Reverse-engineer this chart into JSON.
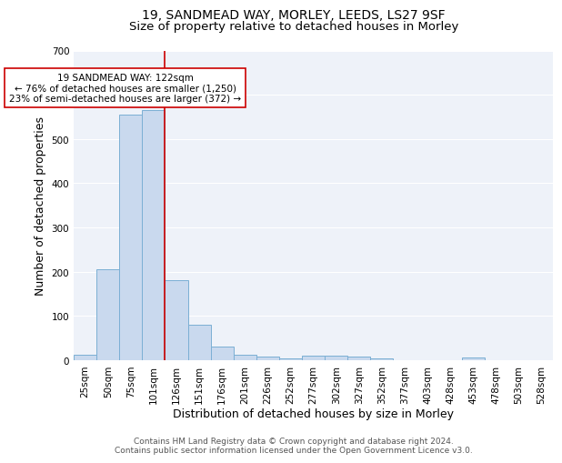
{
  "title_line1": "19, SANDMEAD WAY, MORLEY, LEEDS, LS27 9SF",
  "title_line2": "Size of property relative to detached houses in Morley",
  "xlabel": "Distribution of detached houses by size in Morley",
  "ylabel": "Number of detached properties",
  "footnote_line1": "Contains HM Land Registry data © Crown copyright and database right 2024.",
  "footnote_line2": "Contains public sector information licensed under the Open Government Licence v3.0.",
  "bar_labels": [
    "25sqm",
    "50sqm",
    "75sqm",
    "101sqm",
    "126sqm",
    "151sqm",
    "176sqm",
    "201sqm",
    "226sqm",
    "252sqm",
    "277sqm",
    "302sqm",
    "327sqm",
    "352sqm",
    "377sqm",
    "403sqm",
    "428sqm",
    "453sqm",
    "478sqm",
    "503sqm",
    "528sqm"
  ],
  "bar_values": [
    12,
    205,
    555,
    565,
    180,
    80,
    30,
    13,
    8,
    5,
    10,
    10,
    8,
    4,
    0,
    0,
    0,
    7,
    0,
    0,
    0
  ],
  "bar_color": "#c9d9ee",
  "bar_edge_color": "#7bafd4",
  "red_line_color": "#cc0000",
  "annotation_text": "19 SANDMEAD WAY: 122sqm\n← 76% of detached houses are smaller (1,250)\n23% of semi-detached houses are larger (372) →",
  "annotation_box_color": "white",
  "annotation_box_edge": "#cc0000",
  "ylim": [
    0,
    700
  ],
  "yticks": [
    0,
    100,
    200,
    300,
    400,
    500,
    600,
    700
  ],
  "background_color": "#eef2f9",
  "grid_color": "white",
  "title_fontsize": 10,
  "subtitle_fontsize": 9.5,
  "axis_label_fontsize": 9,
  "tick_fontsize": 7.5,
  "annotation_fontsize": 7.5,
  "footnote_fontsize": 6.5
}
